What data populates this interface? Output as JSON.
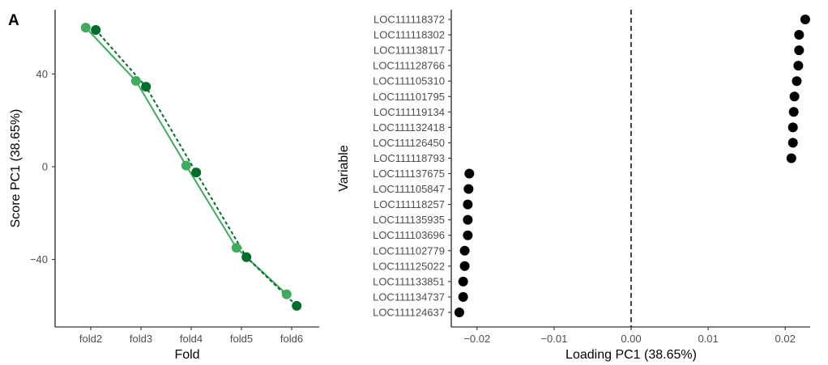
{
  "panel_label": "A",
  "colors": {
    "series_solid": "#41ab5d",
    "series_dashed": "#006d2c",
    "ribbon": "#a1d99b",
    "points_right": "#000000",
    "axis": "#000000",
    "tick_text": "#4d4d4d"
  },
  "chart_data": [
    {
      "type": "line",
      "title": "",
      "xlabel": "Fold",
      "ylabel": "Score PC1 (38.65%)",
      "categories": [
        "fold2",
        "fold3",
        "fold4",
        "fold5",
        "fold6"
      ],
      "ylim": [
        -65,
        65
      ],
      "yticks": [
        40,
        0,
        -40
      ],
      "ytick_labels": [
        "40",
        "0",
        "−40"
      ],
      "grid": false,
      "legend": "none",
      "series": [
        {
          "style": "solid",
          "dodge": -0.1,
          "values": [
            60,
            37,
            0.5,
            -35,
            -55
          ]
        },
        {
          "style": "dashed",
          "dodge": 0.1,
          "values": [
            59,
            34.5,
            -2.5,
            -39,
            -60
          ]
        }
      ]
    },
    {
      "type": "scatter",
      "title": "",
      "xlabel": "Loading PC1 (38.65%)",
      "ylabel": "Variable",
      "xlim": [
        -0.0235,
        0.0245
      ],
      "xticks": [
        -0.02,
        -0.01,
        0.0,
        0.01,
        0.02
      ],
      "xtick_labels": [
        "−0.02",
        "−0.01",
        "0.00",
        "0.01",
        "0.02"
      ],
      "reference_line": {
        "x": 0.0,
        "style": "dashed"
      },
      "grid": false,
      "legend": "none",
      "categories": [
        "LOC111118372",
        "LOC111118302",
        "LOC111138117",
        "LOC111128766",
        "LOC111105310",
        "LOC111101795",
        "LOC111119134",
        "LOC111132418",
        "LOC111126450",
        "LOC111118793",
        "LOC111137675",
        "LOC111105847",
        "LOC111118257",
        "LOC111135935",
        "LOC111103696",
        "LOC111102779",
        "LOC111125022",
        "LOC111133851",
        "LOC111134737",
        "LOC111124637"
      ],
      "values": [
        0.0226,
        0.0218,
        0.0218,
        0.0217,
        0.0215,
        0.0212,
        0.0211,
        0.021,
        0.021,
        0.0208,
        -0.021,
        -0.0211,
        -0.0212,
        -0.0212,
        -0.0212,
        -0.0216,
        -0.0216,
        -0.0218,
        -0.0218,
        -0.0223
      ]
    }
  ]
}
